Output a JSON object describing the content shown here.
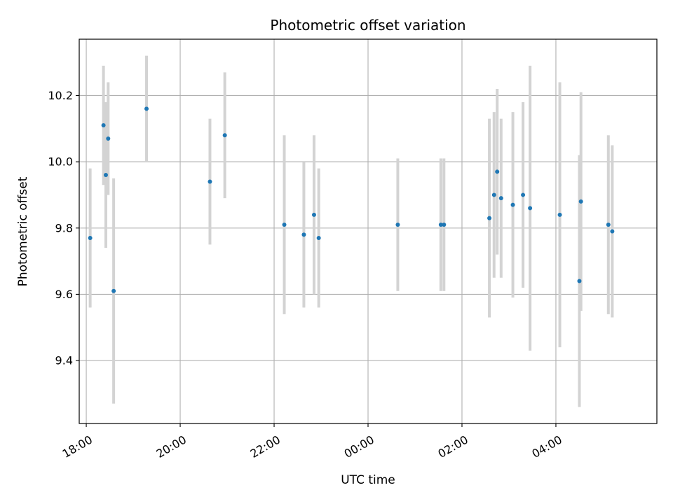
{
  "chart_data": {
    "type": "scatter",
    "title": "Photometric offset variation",
    "xlabel": "UTC time",
    "ylabel": "Photometric offset",
    "grid": true,
    "x_ticks": [
      "18:00",
      "20:00",
      "22:00",
      "00:00",
      "02:00",
      "04:00"
    ],
    "y_ticks": [
      "9.4",
      "9.6",
      "9.8",
      "10.0",
      "10.2"
    ],
    "xlim": [
      "17:51",
      "06:09"
    ],
    "ylim": [
      9.21,
      10.37
    ],
    "colors": {
      "points": "#1f77b4",
      "errorbars": "#d3d3d3",
      "grid": "#b0b0b0"
    },
    "series": [
      {
        "points": [
          {
            "x": "18:05",
            "y": 9.77,
            "err": 0.21
          },
          {
            "x": "18:22",
            "y": 10.11,
            "err": 0.18
          },
          {
            "x": "18:25",
            "y": 9.96,
            "err": 0.22
          },
          {
            "x": "18:28",
            "y": 10.07,
            "err": 0.17
          },
          {
            "x": "18:35",
            "y": 9.61,
            "err": 0.34
          },
          {
            "x": "19:17",
            "y": 10.16,
            "err": 0.16
          },
          {
            "x": "20:38",
            "y": 9.94,
            "err": 0.19
          },
          {
            "x": "20:57",
            "y": 10.08,
            "err": 0.19
          },
          {
            "x": "22:13",
            "y": 9.81,
            "err": 0.27
          },
          {
            "x": "22:38",
            "y": 9.78,
            "err": 0.22
          },
          {
            "x": "22:51",
            "y": 9.84,
            "err": 0.24
          },
          {
            "x": "22:57",
            "y": 9.77,
            "err": 0.21
          },
          {
            "x": "00:38",
            "y": 9.81,
            "err": 0.2
          },
          {
            "x": "01:33",
            "y": 9.81,
            "err": 0.2
          },
          {
            "x": "01:37",
            "y": 9.81,
            "err": 0.2
          },
          {
            "x": "02:35",
            "y": 9.83,
            "err": 0.3
          },
          {
            "x": "02:41",
            "y": 9.9,
            "err": 0.25
          },
          {
            "x": "02:45",
            "y": 9.97,
            "err": 0.25
          },
          {
            "x": "02:50",
            "y": 9.89,
            "err": 0.24
          },
          {
            "x": "03:05",
            "y": 9.87,
            "err": 0.28
          },
          {
            "x": "03:18",
            "y": 9.9,
            "err": 0.28
          },
          {
            "x": "03:27",
            "y": 9.86,
            "err": 0.43
          },
          {
            "x": "04:05",
            "y": 9.84,
            "err": 0.4
          },
          {
            "x": "04:30",
            "y": 9.64,
            "err": 0.38
          },
          {
            "x": "04:32",
            "y": 9.88,
            "err": 0.33
          },
          {
            "x": "05:07",
            "y": 9.81,
            "err": 0.27
          },
          {
            "x": "05:12",
            "y": 9.79,
            "err": 0.26
          }
        ]
      }
    ]
  }
}
